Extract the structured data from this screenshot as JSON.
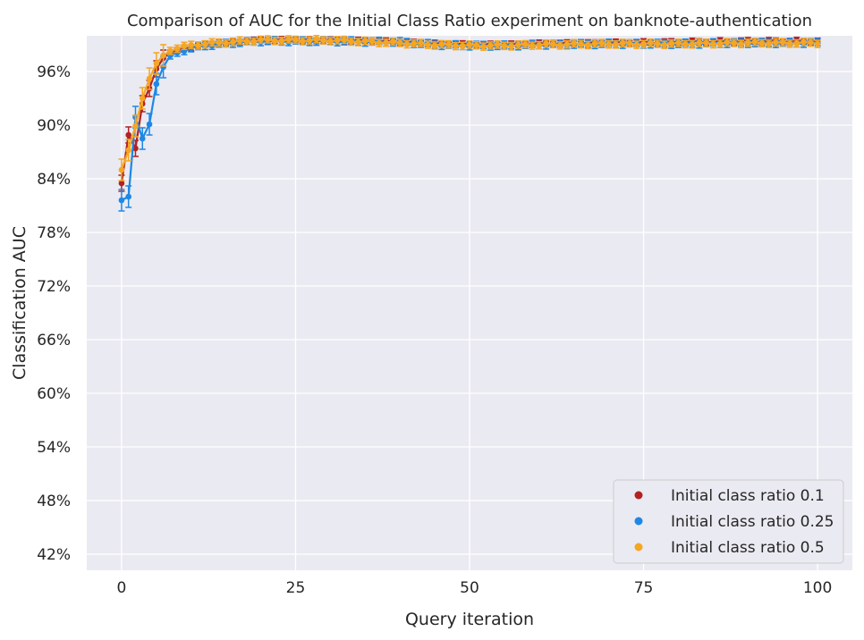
{
  "chart_data": {
    "type": "line",
    "title": "Comparison of AUC for the Initial Class Ratio experiment on banknote-authentication",
    "xlabel": "Query iteration",
    "ylabel": "Classification AUC",
    "xlim": [
      -5,
      105
    ],
    "ylim": [
      0.402,
      1.0
    ],
    "xticks": [
      0,
      25,
      50,
      75,
      100
    ],
    "xtick_labels": [
      "0",
      "25",
      "50",
      "75",
      "100"
    ],
    "yticks": [
      0.42,
      0.48,
      0.54,
      0.6,
      0.66,
      0.72,
      0.78,
      0.84,
      0.9,
      0.96
    ],
    "ytick_labels": [
      "42%",
      "48%",
      "54%",
      "60%",
      "66%",
      "72%",
      "78%",
      "84%",
      "90%",
      "96%"
    ],
    "grid": true,
    "legend_position": "bottom-right",
    "style": {
      "background": "#eaeaf2",
      "grid_color": "#ffffff"
    },
    "series": [
      {
        "name": "Initial class ratio 0.1",
        "color": "#b22222",
        "anchors": [
          [
            0,
            0.835
          ],
          [
            1,
            0.889
          ],
          [
            2,
            0.874
          ],
          [
            3,
            0.924
          ],
          [
            4,
            0.941
          ],
          [
            5,
            0.963
          ],
          [
            6,
            0.975
          ],
          [
            7,
            0.981
          ],
          [
            9,
            0.986
          ],
          [
            12,
            0.99
          ],
          [
            16,
            0.993
          ],
          [
            20,
            0.995
          ],
          [
            30,
            0.995
          ],
          [
            40,
            0.993
          ],
          [
            45,
            0.991
          ],
          [
            50,
            0.99
          ],
          [
            55,
            0.99
          ],
          [
            60,
            0.991
          ],
          [
            70,
            0.992
          ],
          [
            80,
            0.993
          ],
          [
            90,
            0.994
          ],
          [
            100,
            0.994
          ]
        ],
        "error": 0.003
      },
      {
        "name": "Initial class ratio 0.25",
        "color": "#1e88e5",
        "anchors": [
          [
            0,
            0.816
          ],
          [
            1,
            0.82
          ],
          [
            2,
            0.909
          ],
          [
            3,
            0.885
          ],
          [
            4,
            0.901
          ],
          [
            5,
            0.946
          ],
          [
            6,
            0.965
          ],
          [
            7,
            0.978
          ],
          [
            9,
            0.984
          ],
          [
            12,
            0.989
          ],
          [
            16,
            0.992
          ],
          [
            20,
            0.994
          ],
          [
            30,
            0.994
          ],
          [
            40,
            0.993
          ],
          [
            45,
            0.99
          ],
          [
            50,
            0.989
          ],
          [
            55,
            0.989
          ],
          [
            60,
            0.99
          ],
          [
            70,
            0.991
          ],
          [
            80,
            0.991
          ],
          [
            90,
            0.992
          ],
          [
            100,
            0.992
          ]
        ],
        "error": 0.004
      },
      {
        "name": "Initial class ratio 0.5",
        "color": "#f5a623",
        "anchors": [
          [
            0,
            0.85
          ],
          [
            1,
            0.872
          ],
          [
            2,
            0.899
          ],
          [
            3,
            0.93
          ],
          [
            4,
            0.952
          ],
          [
            5,
            0.969
          ],
          [
            6,
            0.978
          ],
          [
            7,
            0.983
          ],
          [
            9,
            0.988
          ],
          [
            12,
            0.991
          ],
          [
            16,
            0.993
          ],
          [
            20,
            0.995
          ],
          [
            30,
            0.995
          ],
          [
            40,
            0.992
          ],
          [
            45,
            0.99
          ],
          [
            50,
            0.989
          ],
          [
            55,
            0.989
          ],
          [
            60,
            0.99
          ],
          [
            70,
            0.991
          ],
          [
            80,
            0.991
          ],
          [
            90,
            0.992
          ],
          [
            100,
            0.992
          ]
        ],
        "error": 0.004
      }
    ]
  }
}
